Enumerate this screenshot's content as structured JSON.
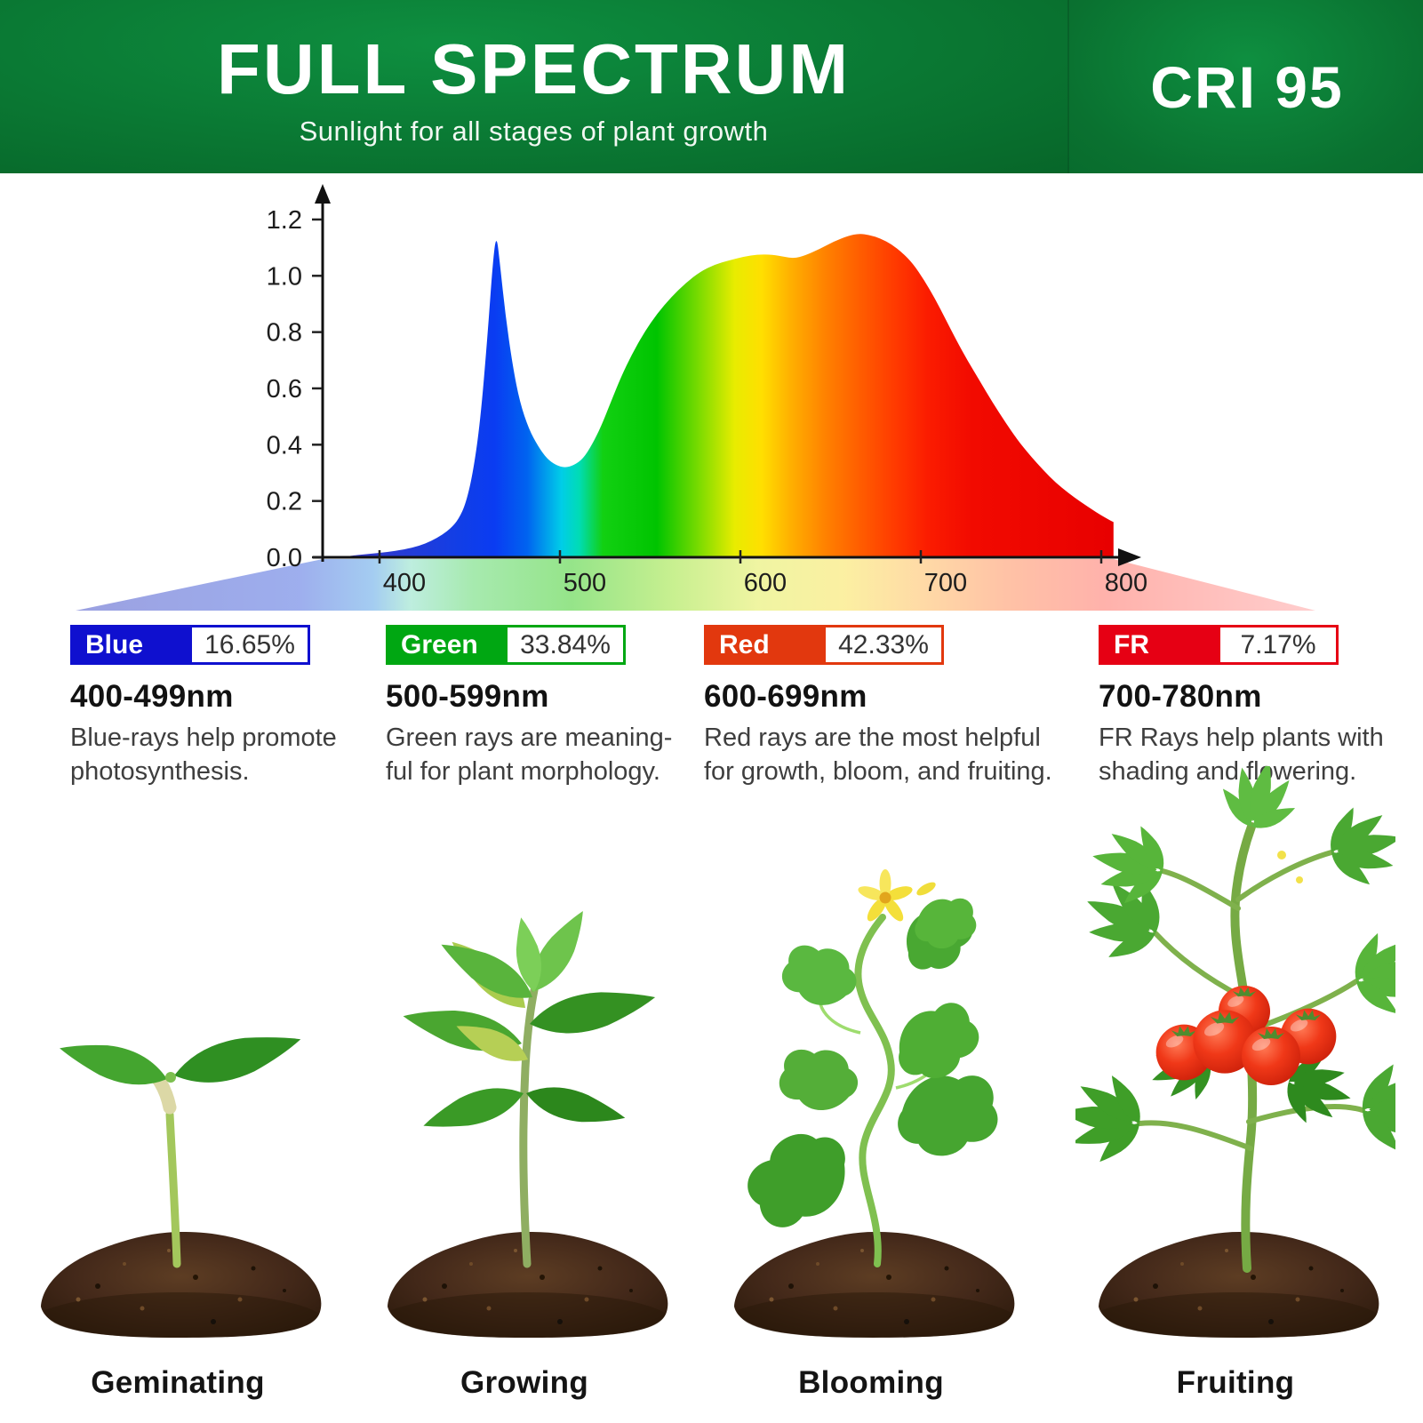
{
  "header": {
    "title": "FULL SPECTRUM",
    "subtitle": "Sunlight for all stages of plant growth",
    "badge": "CRI 95",
    "bg_green_dark": "#076629",
    "bg_green_light": "#0e8f40"
  },
  "chart_data": {
    "type": "area",
    "x_ticks": [
      400,
      500,
      600,
      700,
      800
    ],
    "y_ticks": [
      "0.0",
      "0.2",
      "0.4",
      "0.6",
      "0.8",
      "1.0",
      "1.2"
    ],
    "x_range_nm": [
      370,
      793
    ],
    "ylim": [
      0,
      1.3
    ],
    "grid": false,
    "legend_position": "none",
    "points": [
      [
        370,
        0.005
      ],
      [
        380,
        0.012
      ],
      [
        390,
        0.018
      ],
      [
        400,
        0.028
      ],
      [
        408,
        0.04
      ],
      [
        415,
        0.058
      ],
      [
        421,
        0.08
      ],
      [
        426,
        0.105
      ],
      [
        430,
        0.135
      ],
      [
        434,
        0.19
      ],
      [
        438,
        0.3
      ],
      [
        442,
        0.48
      ],
      [
        446,
        0.78
      ],
      [
        449,
        1.05
      ],
      [
        451,
        1.15
      ],
      [
        453,
        1.04
      ],
      [
        456,
        0.86
      ],
      [
        460,
        0.68
      ],
      [
        464,
        0.55
      ],
      [
        469,
        0.455
      ],
      [
        474,
        0.395
      ],
      [
        479,
        0.35
      ],
      [
        484,
        0.327
      ],
      [
        489,
        0.318
      ],
      [
        494,
        0.327
      ],
      [
        499,
        0.35
      ],
      [
        504,
        0.4
      ],
      [
        509,
        0.465
      ],
      [
        514,
        0.545
      ],
      [
        520,
        0.64
      ],
      [
        526,
        0.72
      ],
      [
        533,
        0.8
      ],
      [
        540,
        0.865
      ],
      [
        548,
        0.925
      ],
      [
        556,
        0.975
      ],
      [
        564,
        1.015
      ],
      [
        572,
        1.04
      ],
      [
        580,
        1.055
      ],
      [
        588,
        1.068
      ],
      [
        596,
        1.076
      ],
      [
        604,
        1.075
      ],
      [
        610,
        1.068
      ],
      [
        616,
        1.062
      ],
      [
        622,
        1.072
      ],
      [
        630,
        1.095
      ],
      [
        638,
        1.122
      ],
      [
        646,
        1.142
      ],
      [
        652,
        1.15
      ],
      [
        658,
        1.145
      ],
      [
        664,
        1.132
      ],
      [
        670,
        1.112
      ],
      [
        676,
        1.082
      ],
      [
        682,
        1.042
      ],
      [
        688,
        0.985
      ],
      [
        694,
        0.92
      ],
      [
        700,
        0.845
      ],
      [
        706,
        0.77
      ],
      [
        712,
        0.7
      ],
      [
        719,
        0.625
      ],
      [
        726,
        0.55
      ],
      [
        733,
        0.48
      ],
      [
        740,
        0.415
      ],
      [
        747,
        0.36
      ],
      [
        754,
        0.31
      ],
      [
        761,
        0.265
      ],
      [
        768,
        0.228
      ],
      [
        775,
        0.196
      ],
      [
        781,
        0.17
      ],
      [
        786,
        0.15
      ],
      [
        790,
        0.135
      ],
      [
        793,
        0.125
      ]
    ],
    "spectrum_gradient": [
      [
        370,
        "#3838c6"
      ],
      [
        430,
        "#123ee6"
      ],
      [
        450,
        "#0a3cf2"
      ],
      [
        468,
        "#0063f0"
      ],
      [
        487,
        "#00cde8"
      ],
      [
        497,
        "#00dcb4"
      ],
      [
        510,
        "#12d012"
      ],
      [
        540,
        "#00c400"
      ],
      [
        562,
        "#74da00"
      ],
      [
        583,
        "#e8ec00"
      ],
      [
        598,
        "#ffdf00"
      ],
      [
        614,
        "#ffb000"
      ],
      [
        634,
        "#ff8000"
      ],
      [
        652,
        "#ff5e00"
      ],
      [
        672,
        "#ff3a00"
      ],
      [
        690,
        "#fb1c00"
      ],
      [
        715,
        "#f20a00"
      ],
      [
        793,
        "#e80000"
      ]
    ],
    "beam_gradient": [
      [
        0,
        "#9298de"
      ],
      [
        0.18,
        "#95a7ec"
      ],
      [
        0.24,
        "#9cc8f0"
      ],
      [
        0.27,
        "#b8ecdc"
      ],
      [
        0.32,
        "#9fe8a8"
      ],
      [
        0.4,
        "#8ce27f"
      ],
      [
        0.48,
        "#c2ee86"
      ],
      [
        0.55,
        "#eef49a"
      ],
      [
        0.62,
        "#fbee9a"
      ],
      [
        0.68,
        "#ffd89e"
      ],
      [
        0.75,
        "#ffbd9e"
      ],
      [
        0.83,
        "#ffaba4"
      ],
      [
        1,
        "#ffc9c9"
      ]
    ]
  },
  "legend": [
    {
      "label": "Blue",
      "percent": "16.65%",
      "range": "400-499nm",
      "color": "#0f10cf",
      "desc_line1": "Blue-rays help promote",
      "desc_line2": "photosynthesis."
    },
    {
      "label": "Green",
      "percent": "33.84%",
      "range": "500-599nm",
      "color": "#00a712",
      "desc_line1": "Green rays are meaning-",
      "desc_line2": "ful for plant morphology."
    },
    {
      "label": "Red",
      "percent": "42.33%",
      "range": "600-699nm",
      "color": "#e2380e",
      "desc_line1": "Red rays are the most helpful",
      "desc_line2": "for growth, bloom, and fruiting."
    },
    {
      "label": "FR",
      "percent": "7.17%",
      "range": "700-780nm",
      "color": "#e60014",
      "desc_line1": "FR Rays help plants with",
      "desc_line2": "shading and flowering."
    }
  ],
  "stages": [
    {
      "label": "Geminating"
    },
    {
      "label": "Growing"
    },
    {
      "label": "Blooming"
    },
    {
      "label": "Fruiting"
    }
  ]
}
